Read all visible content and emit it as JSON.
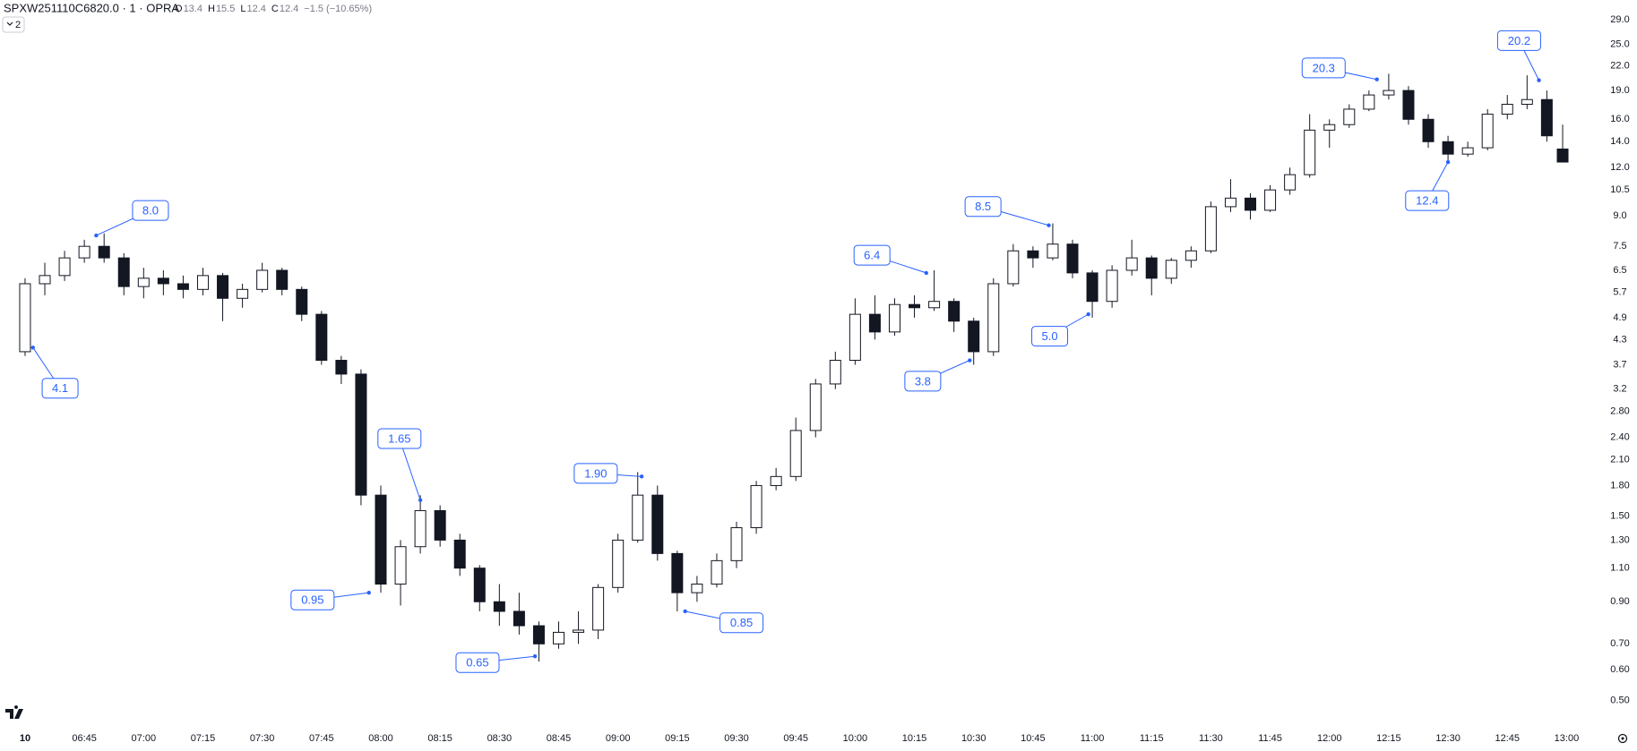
{
  "header": {
    "symbol": "SPXW251110C6820.0 · 1 · OPRA",
    "ohlc": [
      [
        "O",
        "13.4"
      ],
      [
        "H",
        "15.5"
      ],
      [
        "L",
        "12.4"
      ],
      [
        "C",
        "12.4"
      ]
    ],
    "change": "−1.5 (−10.65%)",
    "indicator_count": "2"
  },
  "chart_data": {
    "type": "candlestick",
    "log_scale": true,
    "grid": false,
    "up_color": "#ffffff",
    "down_color": "#131722",
    "outline_color": "#131722",
    "annotation_color": "#2962ff",
    "ylim": [
      0.42,
      32.6
    ],
    "yticks": [
      {
        "value": 0.5,
        "label": "0.50"
      },
      {
        "value": 0.6,
        "label": "0.60"
      },
      {
        "value": 0.7,
        "label": "0.70"
      },
      {
        "value": 0.9,
        "label": "0.90"
      },
      {
        "value": 1.1,
        "label": "1.10"
      },
      {
        "value": 1.3,
        "label": "1.30"
      },
      {
        "value": 1.5,
        "label": "1.50"
      },
      {
        "value": 1.8,
        "label": "1.80"
      },
      {
        "value": 2.1,
        "label": "2.10"
      },
      {
        "value": 2.4,
        "label": "2.40"
      },
      {
        "value": 2.8,
        "label": "2.80"
      },
      3.2,
      3.7,
      4.3,
      4.9,
      5.7,
      6.5,
      7.5,
      {
        "value": 9,
        "label": "9.0"
      },
      10.5,
      {
        "value": 12,
        "label": "12.0"
      },
      {
        "value": 14,
        "label": "14.0"
      },
      {
        "value": 16,
        "label": "16.0"
      },
      {
        "value": 19,
        "label": "19.0"
      },
      {
        "value": 22,
        "label": "22.0"
      },
      {
        "value": 25,
        "label": "25.0"
      },
      {
        "value": 29,
        "label": "29.0"
      }
    ],
    "xticks": [
      {
        "value": "06:30",
        "label": "10"
      },
      "06:45",
      "07:00",
      "07:15",
      "07:30",
      "07:45",
      "08:00",
      "08:15",
      "08:30",
      "08:45",
      "09:00",
      "09:15",
      "09:30",
      "09:45",
      "10:00",
      "10:15",
      "10:30",
      "10:45",
      "11:00",
      "11:15",
      "11:30",
      "11:45",
      "12:00",
      "12:15",
      "12:30",
      "12:45",
      "13:00"
    ],
    "x": [
      "06:30",
      "06:35",
      "06:40",
      "06:45",
      "06:50",
      "06:55",
      "07:00",
      "07:05",
      "07:10",
      "07:15",
      "07:20",
      "07:25",
      "07:30",
      "07:35",
      "07:40",
      "07:45",
      "07:50",
      "07:55",
      "08:00",
      "08:05",
      "08:10",
      "08:15",
      "08:20",
      "08:25",
      "08:30",
      "08:35",
      "08:40",
      "08:45",
      "08:50",
      "08:55",
      "09:00",
      "09:05",
      "09:10",
      "09:15",
      "09:20",
      "09:25",
      "09:30",
      "09:35",
      "09:40",
      "09:45",
      "09:50",
      "09:55",
      "10:00",
      "10:05",
      "10:10",
      "10:15",
      "10:20",
      "10:25",
      "10:30",
      "10:35",
      "10:40",
      "10:45",
      "10:50",
      "10:55",
      "11:00",
      "11:05",
      "11:10",
      "11:15",
      "11:20",
      "11:25",
      "11:30",
      "11:35",
      "11:40",
      "11:45",
      "11:50",
      "11:55",
      "12:00",
      "12:05",
      "12:10",
      "12:15",
      "12:20",
      "12:25",
      "12:30",
      "12:35",
      "12:40",
      "12:45",
      "12:50",
      "12:55",
      "12:59"
    ],
    "candles": [
      [
        4.0,
        6.2,
        3.9,
        6.0
      ],
      [
        6.0,
        6.8,
        5.6,
        6.3
      ],
      [
        6.3,
        7.3,
        6.1,
        7.0
      ],
      [
        7.0,
        7.8,
        6.8,
        7.5
      ],
      [
        7.5,
        8.1,
        6.8,
        7.0
      ],
      [
        7.0,
        7.2,
        5.6,
        5.9
      ],
      [
        5.9,
        6.6,
        5.5,
        6.2
      ],
      [
        6.2,
        6.5,
        5.6,
        6.0
      ],
      [
        6.0,
        6.3,
        5.5,
        5.8
      ],
      [
        5.8,
        6.6,
        5.6,
        6.3
      ],
      [
        6.3,
        6.4,
        4.8,
        5.5
      ],
      [
        5.5,
        6.0,
        5.2,
        5.8
      ],
      [
        5.8,
        6.8,
        5.7,
        6.5
      ],
      [
        6.5,
        6.6,
        5.6,
        5.8
      ],
      [
        5.8,
        5.9,
        4.8,
        5.0
      ],
      [
        5.0,
        5.1,
        3.7,
        3.8
      ],
      [
        3.8,
        3.9,
        3.3,
        3.5
      ],
      [
        3.5,
        3.6,
        1.6,
        1.7
      ],
      [
        1.7,
        1.8,
        0.95,
        1.0
      ],
      [
        1.0,
        1.3,
        0.88,
        1.25
      ],
      [
        1.25,
        1.7,
        1.2,
        1.55
      ],
      [
        1.55,
        1.6,
        1.25,
        1.3
      ],
      [
        1.3,
        1.35,
        1.05,
        1.1
      ],
      [
        1.1,
        1.12,
        0.85,
        0.9
      ],
      [
        0.9,
        1.0,
        0.78,
        0.85
      ],
      [
        0.85,
        0.95,
        0.74,
        0.78
      ],
      [
        0.78,
        0.8,
        0.63,
        0.7
      ],
      [
        0.7,
        0.8,
        0.68,
        0.75
      ],
      [
        0.75,
        0.85,
        0.7,
        0.76
      ],
      [
        0.76,
        1.0,
        0.72,
        0.98
      ],
      [
        0.98,
        1.35,
        0.95,
        1.3
      ],
      [
        1.3,
        1.95,
        1.28,
        1.7
      ],
      [
        1.7,
        1.8,
        1.15,
        1.2
      ],
      [
        1.2,
        1.22,
        0.85,
        0.95
      ],
      [
        0.95,
        1.05,
        0.9,
        1.0
      ],
      [
        1.0,
        1.2,
        0.98,
        1.15
      ],
      [
        1.15,
        1.45,
        1.1,
        1.4
      ],
      [
        1.4,
        1.85,
        1.35,
        1.8
      ],
      [
        1.8,
        2.0,
        1.75,
        1.9
      ],
      [
        1.9,
        2.7,
        1.85,
        2.5
      ],
      [
        2.5,
        3.4,
        2.4,
        3.3
      ],
      [
        3.3,
        4.0,
        3.2,
        3.8
      ],
      [
        3.8,
        5.5,
        3.7,
        5.0
      ],
      [
        5.0,
        5.6,
        4.3,
        4.5
      ],
      [
        4.5,
        5.5,
        4.4,
        5.3
      ],
      [
        5.3,
        5.6,
        4.9,
        5.2
      ],
      [
        5.2,
        6.5,
        5.1,
        5.4
      ],
      [
        5.4,
        5.5,
        4.5,
        4.8
      ],
      [
        4.8,
        4.9,
        3.7,
        4.0
      ],
      [
        4.0,
        6.2,
        3.9,
        6.0
      ],
      [
        6.0,
        7.6,
        5.9,
        7.3
      ],
      [
        7.3,
        7.5,
        6.6,
        7.0
      ],
      [
        7.0,
        8.6,
        6.9,
        7.6
      ],
      [
        7.6,
        7.8,
        6.2,
        6.4
      ],
      [
        6.4,
        6.5,
        4.9,
        5.4
      ],
      [
        5.4,
        6.7,
        5.2,
        6.5
      ],
      [
        6.5,
        7.8,
        6.3,
        7.0
      ],
      [
        7.0,
        7.1,
        5.6,
        6.2
      ],
      [
        6.2,
        7.0,
        6.0,
        6.9
      ],
      [
        6.9,
        7.5,
        6.6,
        7.3
      ],
      [
        7.3,
        9.8,
        7.2,
        9.5
      ],
      [
        9.5,
        11.2,
        9.2,
        10.0
      ],
      [
        10.0,
        10.3,
        8.8,
        9.3
      ],
      [
        9.3,
        10.8,
        9.2,
        10.5
      ],
      [
        10.5,
        12.0,
        10.2,
        11.5
      ],
      [
        11.5,
        16.5,
        11.3,
        15.0
      ],
      [
        15.0,
        16.0,
        13.5,
        15.5
      ],
      [
        15.5,
        17.5,
        15.2,
        17.0
      ],
      [
        17.0,
        19.0,
        16.8,
        18.5
      ],
      [
        18.5,
        21.0,
        18.0,
        19.0
      ],
      [
        19.0,
        19.5,
        15.5,
        16.0
      ],
      [
        16.0,
        16.5,
        13.5,
        14.0
      ],
      [
        14.0,
        14.5,
        12.4,
        13.0
      ],
      [
        13.0,
        14.0,
        12.8,
        13.5
      ],
      [
        13.5,
        17.0,
        13.3,
        16.5
      ],
      [
        16.5,
        18.5,
        16.0,
        17.5
      ],
      [
        17.5,
        20.8,
        17.0,
        18.0
      ],
      [
        18.0,
        19.0,
        14.0,
        14.5
      ],
      [
        13.4,
        15.5,
        12.4,
        12.4
      ]
    ],
    "annotations": [
      {
        "label": "4.1",
        "x": "06:32",
        "value": 4.1
      },
      {
        "label": "8.0",
        "x": "06:48",
        "value": 8.0
      },
      {
        "label": "1.65",
        "x": "08:10",
        "value": 1.65
      },
      {
        "label": "0.95",
        "x": "07:57",
        "value": 0.95
      },
      {
        "label": "0.65",
        "x": "08:39",
        "value": 0.65
      },
      {
        "label": "1.90",
        "x": "09:06",
        "value": 1.9
      },
      {
        "label": "0.85",
        "x": "09:17",
        "value": 0.85
      },
      {
        "label": "6.4",
        "x": "10:18",
        "value": 6.4
      },
      {
        "label": "3.8",
        "x": "10:29",
        "value": 3.8
      },
      {
        "label": "8.5",
        "x": "10:49",
        "value": 8.5
      },
      {
        "label": "5.0",
        "x": "10:59",
        "value": 5.0
      },
      {
        "label": "20.3",
        "x": "12:12",
        "value": 20.3
      },
      {
        "label": "12.4",
        "x": "12:30",
        "value": 12.4
      },
      {
        "label": "20.2",
        "x": "12:53",
        "value": 20.2
      }
    ]
  }
}
